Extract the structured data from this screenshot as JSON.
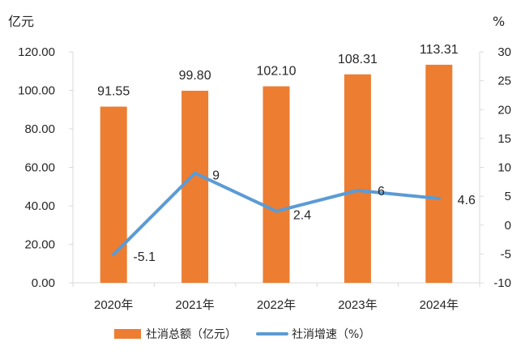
{
  "chart_data": {
    "type": "bar",
    "categories": [
      "2020年",
      "2021年",
      "2022年",
      "2023年",
      "2024年"
    ],
    "series": [
      {
        "name": "社消总额（亿元）",
        "type": "bar",
        "axis": "left",
        "values": [
          91.55,
          99.8,
          102.1,
          108.31,
          113.31
        ],
        "labels": [
          "91.55",
          "99.80",
          "102.10",
          "108.31",
          "113.31"
        ]
      },
      {
        "name": "社消增速（%）",
        "type": "line",
        "axis": "right",
        "values": [
          -5.1,
          9,
          2.4,
          6,
          4.6
        ],
        "labels": [
          "-5.1",
          "9",
          "2.4",
          "6",
          "4.6"
        ]
      }
    ],
    "left_axis": {
      "unit": "亿元",
      "ylim": [
        0,
        120
      ],
      "ticks": [
        "0.00",
        "20.00",
        "40.00",
        "60.00",
        "80.00",
        "100.00",
        "120.00"
      ]
    },
    "right_axis": {
      "unit": "%",
      "ylim": [
        -10,
        30
      ],
      "ticks": [
        "-10",
        "-5",
        "0",
        "5",
        "10",
        "15",
        "20",
        "25",
        "30"
      ]
    },
    "grid": false,
    "legend_position": "bottom",
    "colors": {
      "bar": "#ED7D31",
      "line": "#5B9BD5",
      "axis": "#D9D9D9",
      "text": "#262626"
    }
  }
}
